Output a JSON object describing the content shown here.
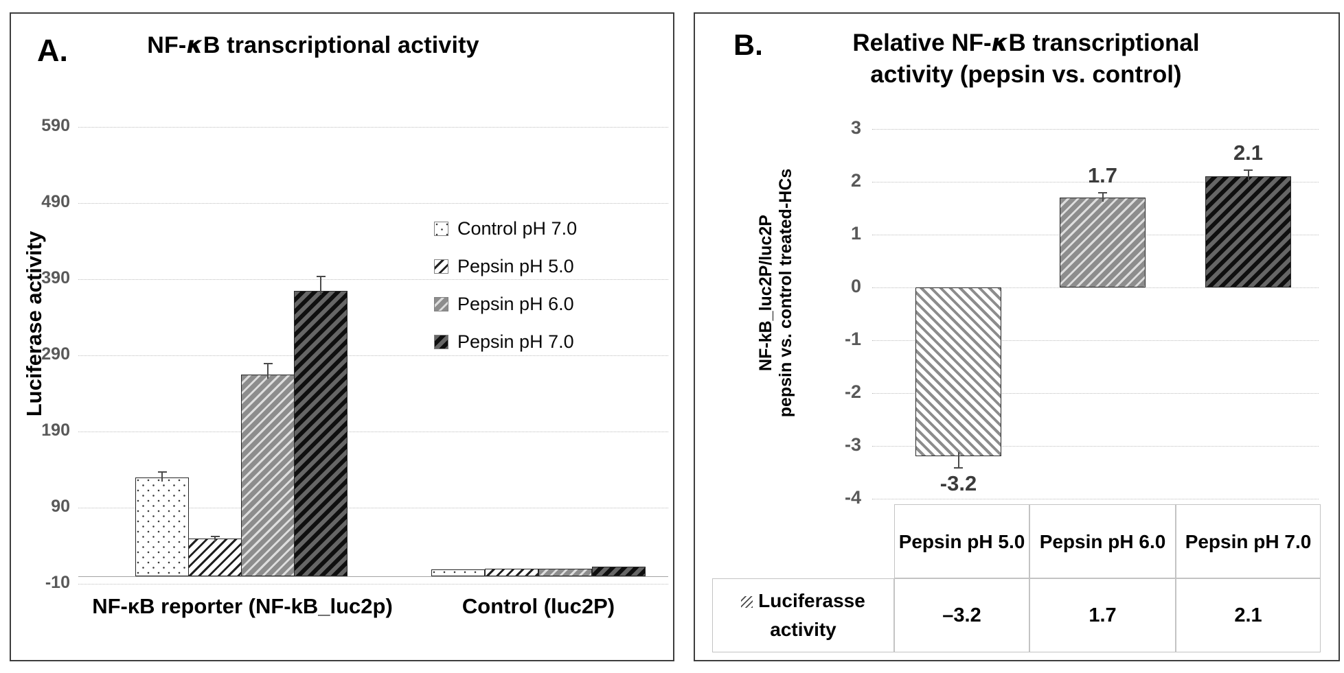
{
  "figure": {
    "panel_a": {
      "label": "A.",
      "title": {
        "pre": "NF-",
        "kappa": "κ",
        "post": "B transcriptional activity"
      },
      "y_label": "Luciferase activity"
    },
    "panel_b": {
      "label": "B.",
      "title_line1": {
        "pre": "Relative NF-",
        "kappa": "κ",
        "post": "B transcriptional"
      },
      "title_line2": "activity (pepsin vs. control)",
      "y_label_line1": "NF-kB_luc2P/luc2P",
      "y_label_line2": "pepsin vs. control treated-HCs"
    }
  },
  "colors": {
    "tick_label": "#595959",
    "gridline": "#bdbdbd",
    "bar_outline": "#262626",
    "error_bar": "#4a4a4a",
    "panel_border": "#3d3d3d",
    "table_border": "#c3c3c3",
    "data_label": "#3b3b3b"
  },
  "chart_data": [
    {
      "id": "A",
      "type": "bar",
      "title": "NF-κB transcriptional activity",
      "ylabel": "Luciferase activity",
      "ylim": [
        -10,
        590
      ],
      "yticks": [
        590,
        490,
        390,
        290,
        190,
        90,
        -10
      ],
      "grid": true,
      "legend_position": "right-inside",
      "categories": [
        "NF-κB reporter (NF-kB_luc2p)",
        "Control (luc2P)"
      ],
      "series": [
        {
          "name": "Control pH 7.0",
          "pattern": "dots",
          "values": [
            130,
            9
          ],
          "errors": [
            8,
            0
          ]
        },
        {
          "name": "Pepsin pH 5.0",
          "pattern": "hatch-light",
          "values": [
            50,
            10
          ],
          "errors": [
            3,
            0
          ]
        },
        {
          "name": "Pepsin pH 6.0",
          "pattern": "hatch-gray",
          "values": [
            265,
            10
          ],
          "errors": [
            15,
            0
          ]
        },
        {
          "name": "Pepsin pH 7.0",
          "pattern": "hatch-dark",
          "values": [
            375,
            13
          ],
          "errors": [
            20,
            0
          ]
        }
      ]
    },
    {
      "id": "B",
      "type": "bar",
      "title": "Relative NF-κB transcriptional activity (pepsin vs. control)",
      "ylabel": "NF-kB_luc2P/luc2P pepsin vs. control treated-HCs",
      "ylim": [
        -4,
        3
      ],
      "yticks": [
        3,
        2,
        1,
        0,
        -1,
        -2,
        -3,
        -4
      ],
      "grid": true,
      "categories": [
        "Pepsin pH 5.0",
        "Pepsin pH 6.0",
        "Pepsin pH 7.0"
      ],
      "series": [
        {
          "name": "Luciferasse activity",
          "patterns": [
            "hatch-back",
            "hatch-gray",
            "hatch-dark"
          ],
          "values": [
            -3.2,
            1.7,
            2.1
          ],
          "errors": [
            0.2,
            0.1,
            0.13
          ],
          "data_labels": [
            "-3.2",
            "1.7",
            "2.1"
          ]
        }
      ],
      "table": {
        "row_label": "Luciferasse activity",
        "columns": [
          "Pepsin pH 5.0",
          "Pepsin pH 6.0",
          "Pepsin pH 7.0"
        ],
        "values": [
          "–3.2",
          "1.7",
          "2.1"
        ]
      }
    }
  ]
}
